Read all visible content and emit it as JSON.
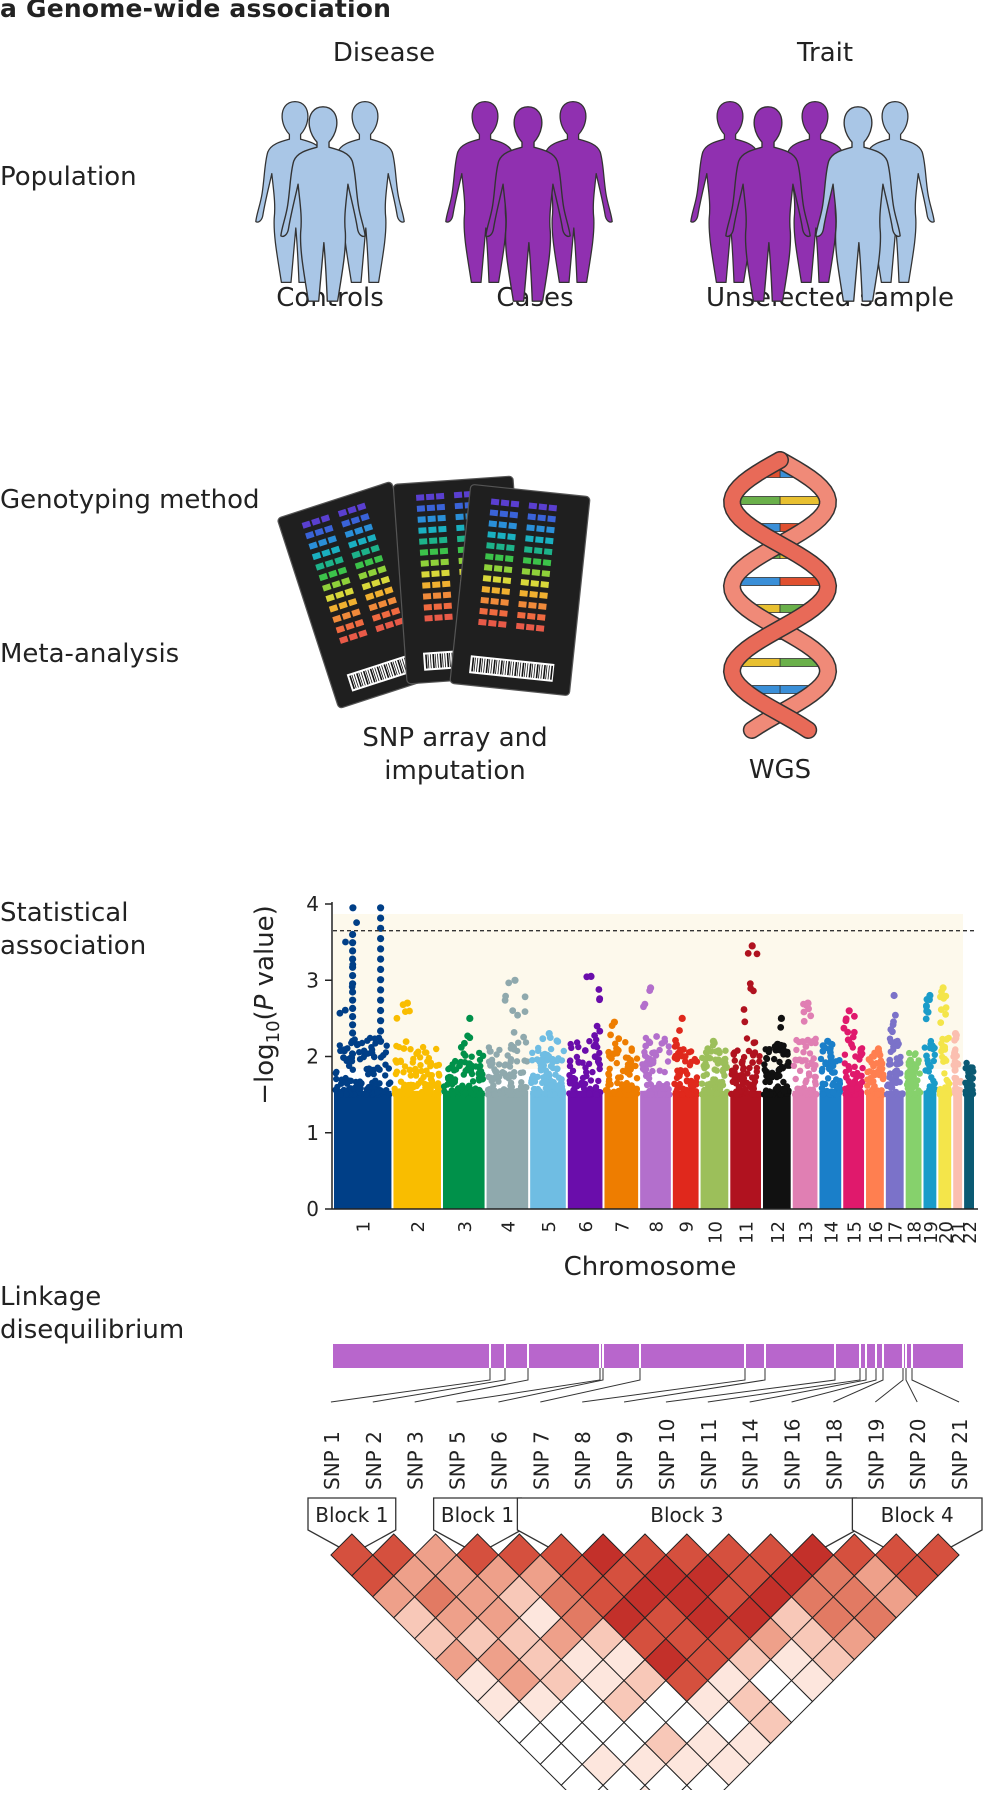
{
  "panel": {
    "title": "a  Genome-wide association"
  },
  "rows": {
    "population": "Population",
    "genotyping": "Genotyping method",
    "meta": "Meta-analysis",
    "statistical_1": "Statistical",
    "statistical_2": "association",
    "linkage_1": "Linkage",
    "linkage_2": "disequilibrium"
  },
  "population": {
    "disease_header": "Disease",
    "trait_header": "Trait",
    "controls": "Controls",
    "cases": "Cases",
    "unselected": "Unselected sample"
  },
  "genotyping": {
    "snp_line1": "SNP array and",
    "snp_line2": "imputation",
    "wgs": "WGS"
  },
  "colors": {
    "control": "#a9c6e6",
    "case": "#9030b0",
    "ld_bar": "#b866cc",
    "ld_strong": "#c8302a"
  },
  "chart_data": {
    "type": "scatter",
    "subtype": "manhattan",
    "ylabel": "−log10(P value)",
    "xlabel": "Chromosome",
    "ylim": [
      0,
      4
    ],
    "yticks": [
      0,
      1,
      2,
      3,
      4
    ],
    "threshold": 3.65,
    "chromosomes": [
      {
        "name": "1",
        "color": "#003f87",
        "base": 1.9,
        "peak": 3.95,
        "peak2": 3.6
      },
      {
        "name": "2",
        "color": "#f9bd00",
        "base": 1.8,
        "peak": 2.7
      },
      {
        "name": "3",
        "color": "#00914a",
        "base": 1.7,
        "peak": 2.5
      },
      {
        "name": "4",
        "color": "#8fa9ad",
        "base": 1.9,
        "peak": 3.0
      },
      {
        "name": "5",
        "color": "#6fbde3",
        "base": 1.8,
        "peak": 2.3
      },
      {
        "name": "6",
        "color": "#6a0dab",
        "base": 1.9,
        "peak": 3.05
      },
      {
        "name": "7",
        "color": "#ee7d00",
        "base": 1.9,
        "peak": 2.45
      },
      {
        "name": "8",
        "color": "#b36fcc",
        "base": 1.9,
        "peak": 2.9
      },
      {
        "name": "9",
        "color": "#e0281c",
        "base": 1.8,
        "peak": 2.5
      },
      {
        "name": "10",
        "color": "#9cbf5a",
        "base": 1.8,
        "peak": 2.2
      },
      {
        "name": "11",
        "color": "#b0121f",
        "base": 1.9,
        "peak": 3.45
      },
      {
        "name": "12",
        "color": "#111111",
        "base": 1.8,
        "peak": 2.5
      },
      {
        "name": "13",
        "color": "#e07fb3",
        "base": 1.9,
        "peak": 2.7
      },
      {
        "name": "14",
        "color": "#1a7fc9",
        "base": 1.8,
        "peak": 2.2
      },
      {
        "name": "15",
        "color": "#e0196c",
        "base": 1.8,
        "peak": 2.6
      },
      {
        "name": "16",
        "color": "#ff7f50",
        "base": 1.7,
        "peak": 2.1
      },
      {
        "name": "17",
        "color": "#7b72c9",
        "base": 1.9,
        "peak": 2.8
      },
      {
        "name": "18",
        "color": "#86d16c",
        "base": 1.7,
        "peak": 1.95
      },
      {
        "name": "19",
        "color": "#1a9cc9",
        "base": 1.9,
        "peak": 2.8
      },
      {
        "name": "20",
        "color": "#f4e54a",
        "base": 1.9,
        "peak": 2.9
      },
      {
        "name": "21",
        "color": "#fbbfb0",
        "base": 1.8,
        "peak": 2.3
      },
      {
        "name": "22",
        "color": "#0b5a73",
        "base": 1.6,
        "peak": 1.85
      }
    ]
  },
  "ld": {
    "snps": [
      "SNP 1",
      "SNP 2",
      "SNP 3",
      "SNP 5",
      "SNP 6",
      "SNP 7",
      "SNP 8",
      "SNP 9",
      "SNP 10",
      "SNP 11",
      "SNP 14",
      "SNP 16",
      "SNP 18",
      "SNP 19",
      "SNP 20",
      "SNP 21"
    ],
    "blocks": [
      {
        "label": "Block 1",
        "from": 0,
        "to": 1
      },
      {
        "label": "Block 1",
        "from": 3,
        "to": 4
      },
      {
        "label": "Block 3",
        "from": 5,
        "to": 12
      },
      {
        "label": "Block 4",
        "from": 13,
        "to": 15
      }
    ]
  }
}
